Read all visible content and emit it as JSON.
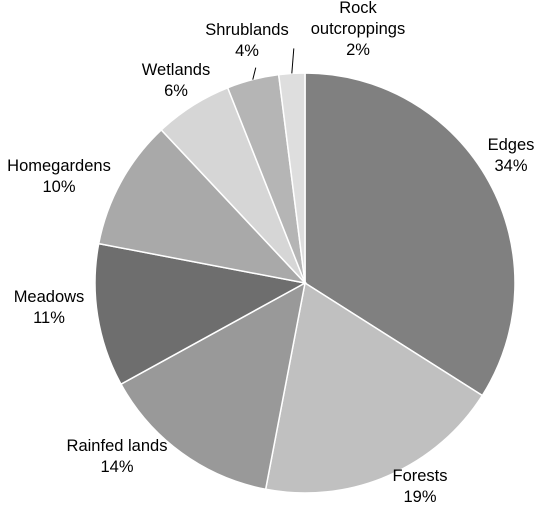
{
  "chart_data": {
    "type": "pie",
    "title": "",
    "start_angle_deg": 0,
    "direction": "clockwise",
    "slices": [
      {
        "label": "Edges",
        "value": 34,
        "value_label": "34%",
        "color": "#808080"
      },
      {
        "label": "Forests",
        "value": 19,
        "value_label": "19%",
        "color": "#c0c0c0"
      },
      {
        "label": "Rainfed lands",
        "value": 14,
        "value_label": "14%",
        "color": "#999999"
      },
      {
        "label": "Meadows",
        "value": 11,
        "value_label": "11%",
        "color": "#6e6e6e"
      },
      {
        "label": "Homegardens",
        "value": 10,
        "value_label": "10%",
        "color": "#a9a9a9"
      },
      {
        "label": "Wetlands",
        "value": 6,
        "value_label": "6%",
        "color": "#d6d6d6"
      },
      {
        "label": "Shrublands",
        "value": 4,
        "value_label": "4%",
        "color": "#b5b5b5"
      },
      {
        "label": "Rock outcroppings",
        "value": 2,
        "value_label": "2%",
        "color": "#dedede"
      }
    ]
  }
}
